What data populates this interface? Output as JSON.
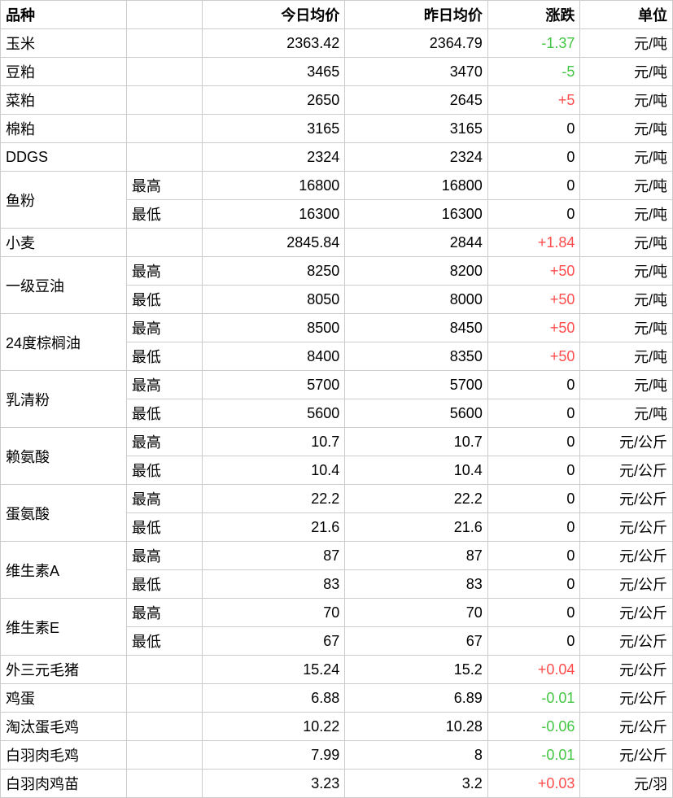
{
  "table": {
    "type": "table",
    "colors": {
      "border": "#cccccc",
      "text": "#000000",
      "positive": "#ff4d4d",
      "negative": "#43c643",
      "background": "#ffffff"
    },
    "font_size": 18,
    "columns": [
      {
        "key": "variety",
        "label": "品种",
        "width": 150,
        "align": "left"
      },
      {
        "key": "sub",
        "label": "",
        "width": 90,
        "align": "left"
      },
      {
        "key": "today",
        "label": "今日均价",
        "width": 170,
        "align": "right"
      },
      {
        "key": "yesterday",
        "label": "昨日均价",
        "width": 170,
        "align": "right"
      },
      {
        "key": "change",
        "label": "涨跌",
        "width": 110,
        "align": "right"
      },
      {
        "key": "unit",
        "label": "单位",
        "width": 110,
        "align": "right"
      }
    ],
    "rows": [
      {
        "variety": "玉米",
        "rowspan": 1,
        "sub": "",
        "today": "2363.42",
        "yesterday": "2364.79",
        "change": "-1.37",
        "change_sign": -1,
        "unit": "元/吨"
      },
      {
        "variety": "豆粕",
        "rowspan": 1,
        "sub": "",
        "today": "3465",
        "yesterday": "3470",
        "change": "-5",
        "change_sign": -1,
        "unit": "元/吨"
      },
      {
        "variety": "菜粕",
        "rowspan": 1,
        "sub": "",
        "today": "2650",
        "yesterday": "2645",
        "change": "+5",
        "change_sign": 1,
        "unit": "元/吨"
      },
      {
        "variety": "棉粕",
        "rowspan": 1,
        "sub": "",
        "today": "3165",
        "yesterday": "3165",
        "change": "0",
        "change_sign": 0,
        "unit": "元/吨"
      },
      {
        "variety": "DDGS",
        "rowspan": 1,
        "sub": "",
        "today": "2324",
        "yesterday": "2324",
        "change": "0",
        "change_sign": 0,
        "unit": "元/吨"
      },
      {
        "variety": "鱼粉",
        "rowspan": 2,
        "sub": "最高",
        "today": "16800",
        "yesterday": "16800",
        "change": "0",
        "change_sign": 0,
        "unit": "元/吨"
      },
      {
        "variety": null,
        "sub": "最低",
        "today": "16300",
        "yesterday": "16300",
        "change": "0",
        "change_sign": 0,
        "unit": "元/吨"
      },
      {
        "variety": "小麦",
        "rowspan": 1,
        "sub": "",
        "today": "2845.84",
        "yesterday": "2844",
        "change": "+1.84",
        "change_sign": 1,
        "unit": "元/吨"
      },
      {
        "variety": "一级豆油",
        "rowspan": 2,
        "sub": "最高",
        "today": "8250",
        "yesterday": "8200",
        "change": "+50",
        "change_sign": 1,
        "unit": "元/吨"
      },
      {
        "variety": null,
        "sub": "最低",
        "today": "8050",
        "yesterday": "8000",
        "change": "+50",
        "change_sign": 1,
        "unit": "元/吨"
      },
      {
        "variety": "24度棕榈油",
        "rowspan": 2,
        "sub": "最高",
        "today": "8500",
        "yesterday": "8450",
        "change": "+50",
        "change_sign": 1,
        "unit": "元/吨"
      },
      {
        "variety": null,
        "sub": "最低",
        "today": "8400",
        "yesterday": "8350",
        "change": "+50",
        "change_sign": 1,
        "unit": "元/吨"
      },
      {
        "variety": "乳清粉",
        "rowspan": 2,
        "sub": "最高",
        "today": "5700",
        "yesterday": "5700",
        "change": "0",
        "change_sign": 0,
        "unit": "元/吨"
      },
      {
        "variety": null,
        "sub": "最低",
        "today": "5600",
        "yesterday": "5600",
        "change": "0",
        "change_sign": 0,
        "unit": "元/吨"
      },
      {
        "variety": "赖氨酸",
        "rowspan": 2,
        "sub": "最高",
        "today": "10.7",
        "yesterday": "10.7",
        "change": "0",
        "change_sign": 0,
        "unit": "元/公斤"
      },
      {
        "variety": null,
        "sub": "最低",
        "today": "10.4",
        "yesterday": "10.4",
        "change": "0",
        "change_sign": 0,
        "unit": "元/公斤"
      },
      {
        "variety": "蛋氨酸",
        "rowspan": 2,
        "sub": "最高",
        "today": "22.2",
        "yesterday": "22.2",
        "change": "0",
        "change_sign": 0,
        "unit": "元/公斤"
      },
      {
        "variety": null,
        "sub": "最低",
        "today": "21.6",
        "yesterday": "21.6",
        "change": "0",
        "change_sign": 0,
        "unit": "元/公斤"
      },
      {
        "variety": "维生素A",
        "rowspan": 2,
        "sub": "最高",
        "today": "87",
        "yesterday": "87",
        "change": "0",
        "change_sign": 0,
        "unit": "元/公斤"
      },
      {
        "variety": null,
        "sub": "最低",
        "today": "83",
        "yesterday": "83",
        "change": "0",
        "change_sign": 0,
        "unit": "元/公斤"
      },
      {
        "variety": "维生素E",
        "rowspan": 2,
        "sub": "最高",
        "today": "70",
        "yesterday": "70",
        "change": "0",
        "change_sign": 0,
        "unit": "元/公斤"
      },
      {
        "variety": null,
        "sub": "最低",
        "today": "67",
        "yesterday": "67",
        "change": "0",
        "change_sign": 0,
        "unit": "元/公斤"
      },
      {
        "variety": "外三元毛猪",
        "rowspan": 1,
        "sub": "",
        "today": "15.24",
        "yesterday": "15.2",
        "change": "+0.04",
        "change_sign": 1,
        "unit": "元/公斤"
      },
      {
        "variety": "鸡蛋",
        "rowspan": 1,
        "sub": "",
        "today": "6.88",
        "yesterday": "6.89",
        "change": "-0.01",
        "change_sign": -1,
        "unit": "元/公斤"
      },
      {
        "variety": "淘汰蛋毛鸡",
        "rowspan": 1,
        "sub": "",
        "today": "10.22",
        "yesterday": "10.28",
        "change": "-0.06",
        "change_sign": -1,
        "unit": "元/公斤"
      },
      {
        "variety": "白羽肉毛鸡",
        "rowspan": 1,
        "sub": "",
        "today": "7.99",
        "yesterday": "8",
        "change": "-0.01",
        "change_sign": -1,
        "unit": "元/公斤"
      },
      {
        "variety": "白羽肉鸡苗",
        "rowspan": 1,
        "sub": "",
        "today": "3.23",
        "yesterday": "3.2",
        "change": "+0.03",
        "change_sign": 1,
        "unit": "元/羽"
      }
    ]
  }
}
